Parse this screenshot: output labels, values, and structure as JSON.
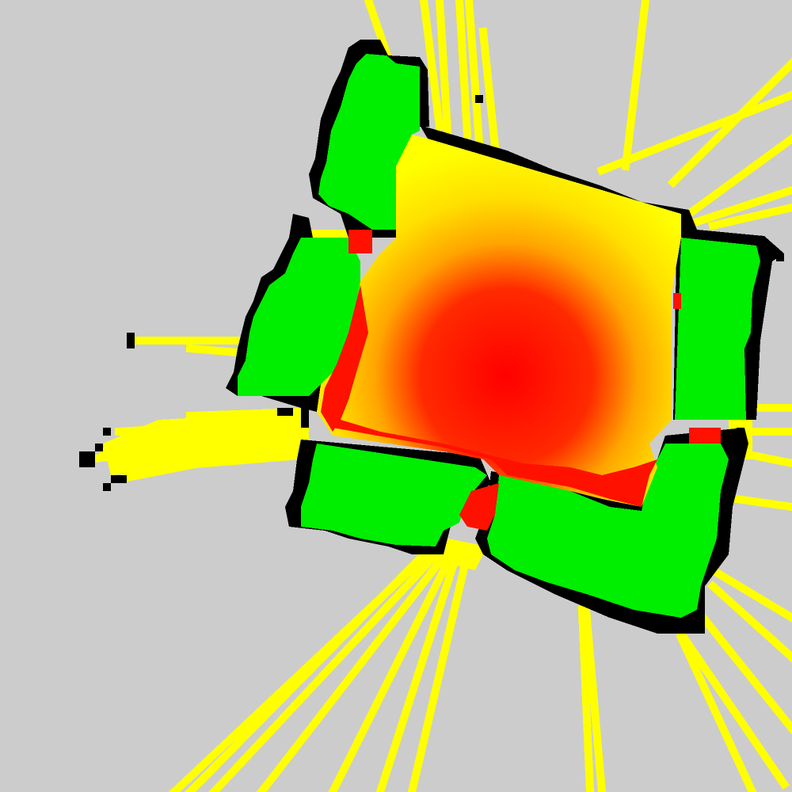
{
  "map": {
    "legend_colors": {
      "unknown": "#cccccc",
      "obstacle": "#000000",
      "free": "#00ee00",
      "ray": "#ffff00",
      "low_cost": "#ffee00",
      "mid_cost": "#ffaa00",
      "high_cost": "#ff1100"
    }
  }
}
